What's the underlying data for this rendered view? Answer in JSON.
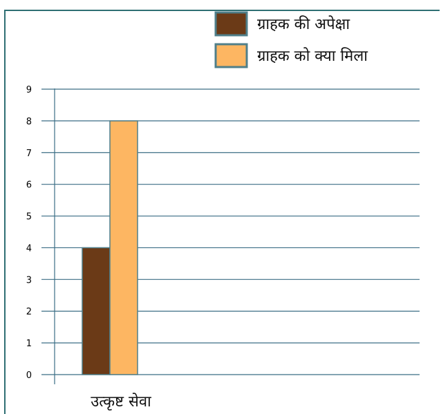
{
  "chart_data": {
    "type": "bar",
    "categories": [
      "उत्कृष्ट सेवा"
    ],
    "series": [
      {
        "name": "ग्राहक की अपेक्षा",
        "values": [
          4
        ],
        "color": "#6b3a17"
      },
      {
        "name": "ग्राहक को क्या मिला",
        "values": [
          8
        ],
        "color": "#fdb662"
      }
    ],
    "ylim": [
      0,
      9
    ],
    "yticks": [
      0,
      1,
      2,
      3,
      4,
      5,
      6,
      7,
      8,
      9
    ],
    "grid": true,
    "legend_position": "top-right",
    "gridline_color": "#3b6e85",
    "bar_border_color": "#4f7f8a"
  }
}
